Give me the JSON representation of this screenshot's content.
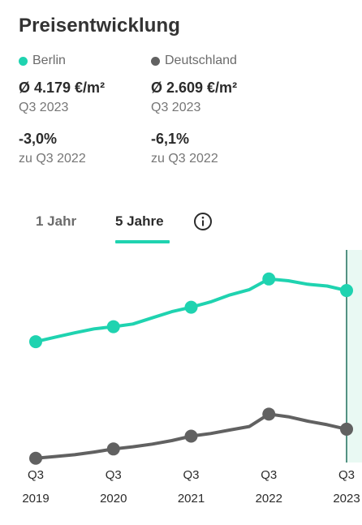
{
  "title": "Preisentwicklung",
  "legend": {
    "left": {
      "label": "Berlin",
      "color": "#1fd3b0",
      "price": "Ø 4.179 €/m²",
      "period": "Q3 2023",
      "change": "-3,0%",
      "change_ref": "zu Q3 2022"
    },
    "right": {
      "label": "Deutschland",
      "color": "#616161",
      "price": "Ø 2.609 €/m²",
      "period": "Q3 2023",
      "change": "-6,1%",
      "change_ref": "zu Q3 2022"
    }
  },
  "tabs": {
    "one_year": "1 Jahr",
    "five_years": "5 Jahre",
    "active": "five_years",
    "accent": "#1fd3b0"
  },
  "icons": {
    "info": "info-circle-icon"
  },
  "chart_data": {
    "type": "line",
    "x_ticks": [
      {
        "top": "Q3",
        "bottom": "2019"
      },
      {
        "top": "Q3",
        "bottom": "2020"
      },
      {
        "top": "Q3",
        "bottom": "2021"
      },
      {
        "top": "Q3",
        "bottom": "2022"
      },
      {
        "top": "Q3",
        "bottom": "2023"
      }
    ],
    "x": [
      "2019-Q3",
      "2019-Q4",
      "2020-Q1",
      "2020-Q2",
      "2020-Q3",
      "2020-Q4",
      "2021-Q1",
      "2021-Q2",
      "2021-Q3",
      "2021-Q4",
      "2022-Q1",
      "2022-Q2",
      "2022-Q3",
      "2022-Q4",
      "2023-Q1",
      "2023-Q2",
      "2023-Q3"
    ],
    "series": [
      {
        "name": "Berlin",
        "color": "#1fd3b0",
        "values": [
          3600,
          3650,
          3700,
          3745,
          3770,
          3800,
          3870,
          3940,
          3990,
          4050,
          4130,
          4190,
          4310,
          4290,
          4250,
          4230,
          4179
        ],
        "markers": [
          0,
          4,
          8,
          12,
          16
        ]
      },
      {
        "name": "Deutschland",
        "color": "#616161",
        "values": [
          2280,
          2300,
          2320,
          2350,
          2385,
          2410,
          2440,
          2480,
          2530,
          2560,
          2600,
          2640,
          2780,
          2750,
          2700,
          2660,
          2609
        ],
        "markers": [
          0,
          4,
          8,
          12,
          16
        ]
      }
    ],
    "ylim": [
      2250,
      4400
    ],
    "grid": false,
    "highlight": "last-period"
  }
}
